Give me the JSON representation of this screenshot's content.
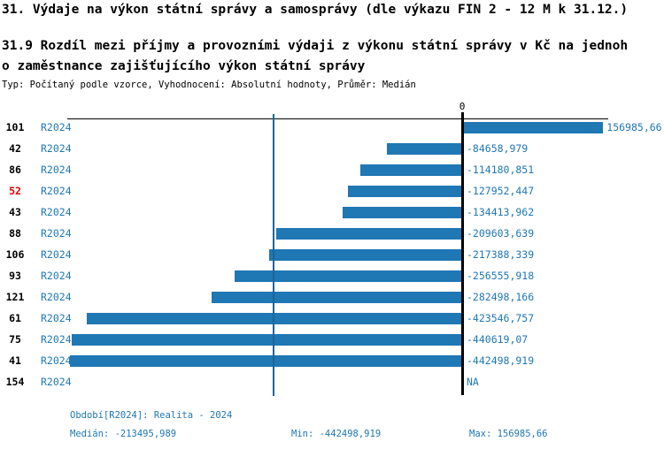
{
  "header": {
    "title": "31. Výdaje na výkon státní správy a samosprávy (dle výkazu FIN 2 - 12 M k 31.12.)",
    "subtitle_lines": [
      "31.9 Rozdíl mezi příjmy a provozními výdaji z výkonu státní správy v Kč na jednoh",
      "o zaměstnance zajišťujícího výkon státní správy"
    ],
    "meta": "Typ: Počítaný podle vzorce, Vyhodnocení: Absolutní hodnoty, Průměr: Medián"
  },
  "chart_data": {
    "type": "bar",
    "orientation": "horizontal",
    "title": "31.9 Rozdíl mezi příjmy a provozními výdaji z výkonu státní správy v Kč na jednoho zaměstnance zajišťujícího výkon státní správy",
    "xlabel": "",
    "ylabel": "",
    "axis_zero_label": "0",
    "xlim": [
      -446000,
      165000
    ],
    "grid": false,
    "legend": null,
    "bar_color": "#1f77b4",
    "text_color": "#1f77b4",
    "highlight_color": "#e00000",
    "median_line_value": -213495.989,
    "rows": [
      {
        "id": "101",
        "period": "R2024",
        "value": 156985.66,
        "value_label": "156985,66",
        "highlighted": false
      },
      {
        "id": "42",
        "period": "R2024",
        "value": -84658.979,
        "value_label": "-84658,979",
        "highlighted": false
      },
      {
        "id": "86",
        "period": "R2024",
        "value": -114180.851,
        "value_label": "-114180,851",
        "highlighted": false
      },
      {
        "id": "52",
        "period": "R2024",
        "value": -127952.447,
        "value_label": "-127952,447",
        "highlighted": true
      },
      {
        "id": "43",
        "period": "R2024",
        "value": -134413.962,
        "value_label": "-134413,962",
        "highlighted": false
      },
      {
        "id": "88",
        "period": "R2024",
        "value": -209603.639,
        "value_label": "-209603,639",
        "highlighted": false
      },
      {
        "id": "106",
        "period": "R2024",
        "value": -217388.339,
        "value_label": "-217388,339",
        "highlighted": false
      },
      {
        "id": "93",
        "period": "R2024",
        "value": -256555.918,
        "value_label": "-256555,918",
        "highlighted": false
      },
      {
        "id": "121",
        "period": "R2024",
        "value": -282498.166,
        "value_label": "-282498,166",
        "highlighted": false
      },
      {
        "id": "61",
        "period": "R2024",
        "value": -423546.757,
        "value_label": "-423546,757",
        "highlighted": false
      },
      {
        "id": "75",
        "period": "R2024",
        "value": -440619.07,
        "value_label": "-440619,07",
        "highlighted": false
      },
      {
        "id": "41",
        "period": "R2024",
        "value": -442498.919,
        "value_label": "-442498,919",
        "highlighted": false
      },
      {
        "id": "154",
        "period": "R2024",
        "value": null,
        "value_label": "NA",
        "highlighted": false
      }
    ],
    "stats": {
      "median": -213495.989,
      "min": -442498.919,
      "max": 156985.66
    }
  },
  "footer": {
    "period_line": "Období[R2024]: Realita - 2024",
    "median_line": "Medián: -213495,989",
    "min_line": "Min: -442498,919",
    "max_line": "Max: 156985,66"
  }
}
